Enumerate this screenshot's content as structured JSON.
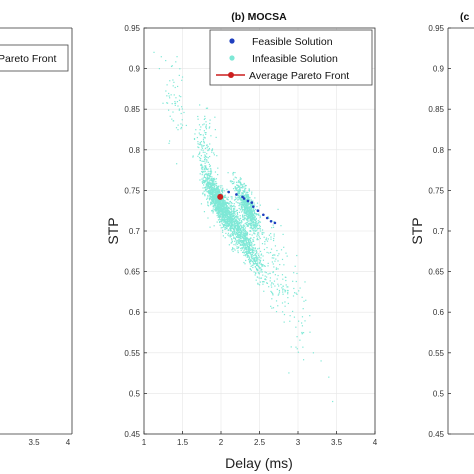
{
  "chart_data": [
    {
      "panel": "left",
      "type": "scatter",
      "title": "",
      "xlim": [
        1,
        4
      ],
      "x_ticks_visible": [
        "3.5",
        "4"
      ],
      "legend_fragment": "Pareto Front"
    },
    {
      "panel": "center",
      "type": "scatter",
      "title": "(b) MOCSA",
      "xlabel": "Delay (ms)",
      "ylabel": "STP",
      "xlim": [
        1,
        4
      ],
      "ylim": [
        0.45,
        0.95
      ],
      "x_ticks": [
        "1",
        "1.5",
        "2",
        "2.5",
        "3",
        "3.5",
        "4"
      ],
      "y_ticks": [
        "0.45",
        "0.5",
        "0.55",
        "0.6",
        "0.65",
        "0.7",
        "0.75",
        "0.8",
        "0.85",
        "0.9",
        "0.95"
      ],
      "grid": true,
      "legend_position": "top-right",
      "series": [
        {
          "name": "Feasible Solution",
          "color": "#1f3fbf",
          "points": [
            [
              2.1,
              0.748
            ],
            [
              2.2,
              0.745
            ],
            [
              2.28,
              0.742
            ],
            [
              2.35,
              0.737
            ],
            [
              2.42,
              0.73
            ],
            [
              2.48,
              0.725
            ],
            [
              2.55,
              0.72
            ],
            [
              2.6,
              0.716
            ],
            [
              2.65,
              0.712
            ],
            [
              2.7,
              0.71
            ],
            [
              2.4,
              0.735
            ],
            [
              2.3,
              0.74
            ]
          ]
        },
        {
          "name": "Infeasible Solution",
          "color": "#7ee8d6",
          "clusters": [
            {
              "x": 1.95,
              "y": 0.738,
              "sx": 0.14,
              "sy": 0.014,
              "n": 900
            },
            {
              "x": 2.35,
              "y": 0.728,
              "sx": 0.15,
              "sy": 0.015,
              "n": 700
            },
            {
              "x": 2.3,
              "y": 0.69,
              "sx": 0.25,
              "sy": 0.014,
              "n": 700
            },
            {
              "x": 2.1,
              "y": 0.715,
              "sx": 0.2,
              "sy": 0.018,
              "n": 400
            },
            {
              "x": 1.8,
              "y": 0.79,
              "sx": 0.12,
              "sy": 0.035,
              "n": 180
            },
            {
              "x": 2.7,
              "y": 0.65,
              "sx": 0.2,
              "sy": 0.04,
              "n": 120
            },
            {
              "x": 1.4,
              "y": 0.86,
              "sx": 0.12,
              "sy": 0.04,
              "n": 60
            },
            {
              "x": 3.0,
              "y": 0.6,
              "sx": 0.18,
              "sy": 0.04,
              "n": 50
            }
          ],
          "outliers": [
            [
              1.13,
              0.92
            ],
            [
              1.2,
              0.9
            ],
            [
              1.3,
              0.88
            ],
            [
              3.05,
              0.575
            ],
            [
              3.2,
              0.55
            ],
            [
              3.3,
              0.54
            ],
            [
              3.4,
              0.52
            ],
            [
              3.45,
              0.49
            ],
            [
              1.55,
              0.83
            ],
            [
              1.7,
              0.81
            ]
          ]
        },
        {
          "name": "Average Pareto Front",
          "color": "#cc1f1f",
          "points": [
            [
              1.99,
              0.742
            ]
          ]
        }
      ]
    },
    {
      "panel": "right",
      "type": "scatter",
      "title_fragment": "(c",
      "ylabel": "STP",
      "ylim": [
        0.45,
        0.95
      ],
      "y_ticks": [
        "0.45",
        "0.5",
        "0.55",
        "0.6",
        "0.65",
        "0.7",
        "0.75",
        "0.8",
        "0.85",
        "0.9",
        "0.95"
      ]
    }
  ]
}
